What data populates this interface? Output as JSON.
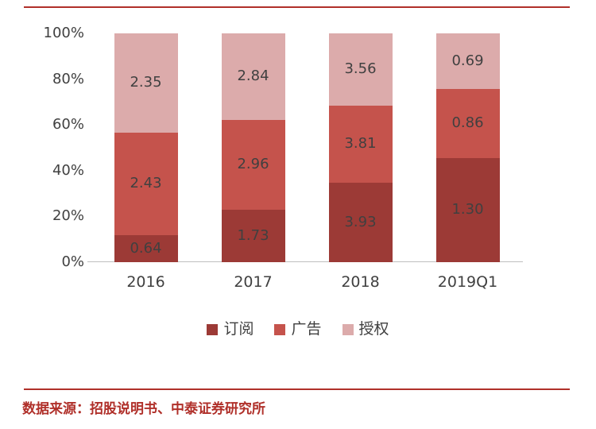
{
  "theme": {
    "accent_color": "#B0302A",
    "axis_color": "#BFBFBF",
    "label_color": "#404040"
  },
  "chart_data": {
    "type": "bar",
    "stacked": true,
    "percent": true,
    "title": "",
    "xlabel": "",
    "ylabel": "",
    "categories": [
      "2016",
      "2017",
      "2018",
      "2019Q1"
    ],
    "series": [
      {
        "name": "订阅",
        "color": "#9C3A36",
        "values": [
          0.64,
          1.73,
          3.93,
          1.3
        ]
      },
      {
        "name": "广告",
        "color": "#C5534C",
        "values": [
          2.43,
          2.96,
          3.81,
          0.86
        ]
      },
      {
        "name": "授权",
        "color": "#DCABAB",
        "values": [
          2.35,
          2.84,
          3.56,
          0.69
        ]
      }
    ],
    "y_ticks": [
      "0%",
      "20%",
      "40%",
      "60%",
      "80%",
      "100%"
    ],
    "ylim": [
      0,
      100
    ],
    "grid": false,
    "legend_position": "bottom"
  },
  "footer": {
    "source_text": "数据来源：招股说明书、中泰证券研究所"
  }
}
